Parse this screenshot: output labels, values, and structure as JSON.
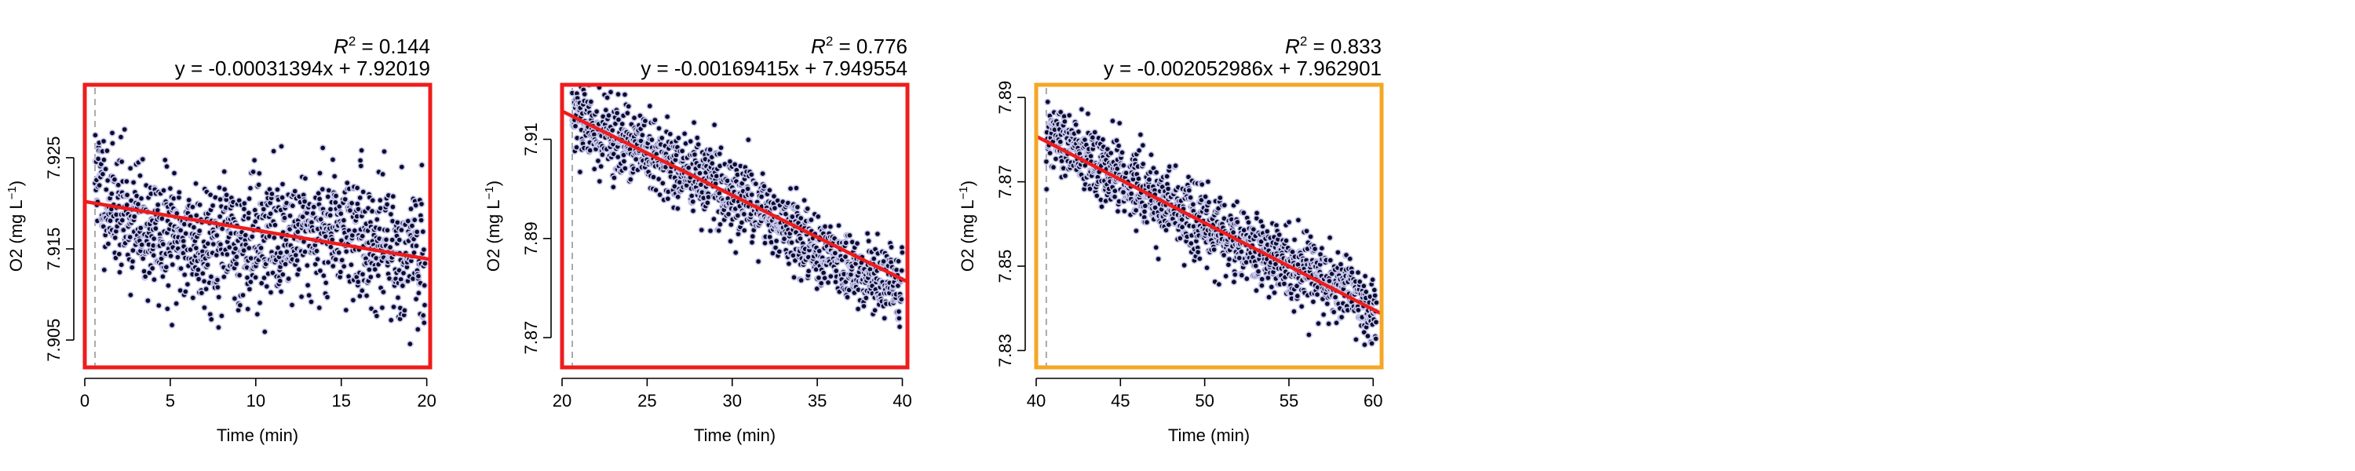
{
  "colors": {
    "point_fill": "#0b0b2e",
    "point_edge": "#c8c8ec",
    "fit_line": "#ee1c1c",
    "start_marker": "#aaaaaa"
  },
  "chart_data": [
    {
      "type": "scatter",
      "ylabel_main": "O2 (mg L",
      "ylabel_sup": "−1",
      "ylabel_close": ")",
      "xlabel": "Time (min)",
      "r2_prefix": "R",
      "r2_exp": "2",
      "r2_value": " = 0.144",
      "equation": "y = -0.00031394x + 7.92019",
      "xlim": [
        0,
        20.2
      ],
      "ylim": [
        7.902,
        7.933
      ],
      "xticks": [
        0,
        5,
        10,
        15,
        20
      ],
      "yticks": [
        7.905,
        7.915,
        7.925
      ],
      "ytick_labels": [
        "7.905",
        "7.915",
        "7.925"
      ],
      "fit": {
        "slope": -0.00031394,
        "intercept": 7.92019
      },
      "start_marker_x": 0.6,
      "frame_color": "#ee1c1c",
      "trend": [
        [
          0.5,
          7.9235
        ],
        [
          1.5,
          7.92
        ],
        [
          4,
          7.9165
        ],
        [
          8,
          7.9155
        ],
        [
          12,
          7.9165
        ],
        [
          15,
          7.9175
        ],
        [
          17,
          7.9155
        ],
        [
          20,
          7.9135
        ]
      ],
      "noise_sd": 0.0034,
      "n_points": 1150,
      "seed": 11
    },
    {
      "type": "scatter",
      "ylabel_main": "O2 (mg L",
      "ylabel_sup": "−1",
      "ylabel_close": ")",
      "xlabel": "Time (min)",
      "r2_prefix": "R",
      "r2_exp": "2",
      "r2_value": " = 0.776",
      "equation": "y = -0.00169415x + 7.949554",
      "xlim": [
        20,
        40.3
      ],
      "ylim": [
        7.864,
        7.921
      ],
      "xticks": [
        20,
        25,
        30,
        35,
        40
      ],
      "yticks": [
        7.87,
        7.89,
        7.91
      ],
      "ytick_labels": [
        "7.87",
        "7.89",
        "7.91"
      ],
      "fit": {
        "slope": -0.00169415,
        "intercept": 7.949554
      },
      "start_marker_x": 20.6,
      "frame_color": "#ee1c1c",
      "trend": [
        [
          20.6,
          7.914
        ],
        [
          25,
          7.907
        ],
        [
          30,
          7.899
        ],
        [
          35,
          7.888
        ],
        [
          40,
          7.879
        ]
      ],
      "noise_sd": 0.0038,
      "n_points": 1150,
      "seed": 29
    },
    {
      "type": "scatter",
      "ylabel_main": "O2 (mg L",
      "ylabel_sup": "−1",
      "ylabel_close": ")",
      "xlabel": "Time (min)",
      "r2_prefix": "R",
      "r2_exp": "2",
      "r2_value": " = 0.833",
      "equation": "y = -0.002052986x + 7.962901",
      "xlim": [
        40,
        60.5
      ],
      "ylim": [
        7.826,
        7.893
      ],
      "xticks": [
        40,
        45,
        50,
        55,
        60
      ],
      "yticks": [
        7.83,
        7.85,
        7.87,
        7.89
      ],
      "ytick_labels": [
        "7.83",
        "7.85",
        "7.87",
        "7.89"
      ],
      "fit": {
        "slope": -0.002052986,
        "intercept": 7.962901
      },
      "start_marker_x": 40.6,
      "frame_color": "#f5a623",
      "trend": [
        [
          40.6,
          7.8815
        ],
        [
          45,
          7.871
        ],
        [
          50,
          7.859
        ],
        [
          55,
          7.85
        ],
        [
          59,
          7.843
        ],
        [
          60,
          7.838
        ]
      ],
      "noise_sd": 0.0042,
      "n_points": 1150,
      "seed": 47
    }
  ]
}
